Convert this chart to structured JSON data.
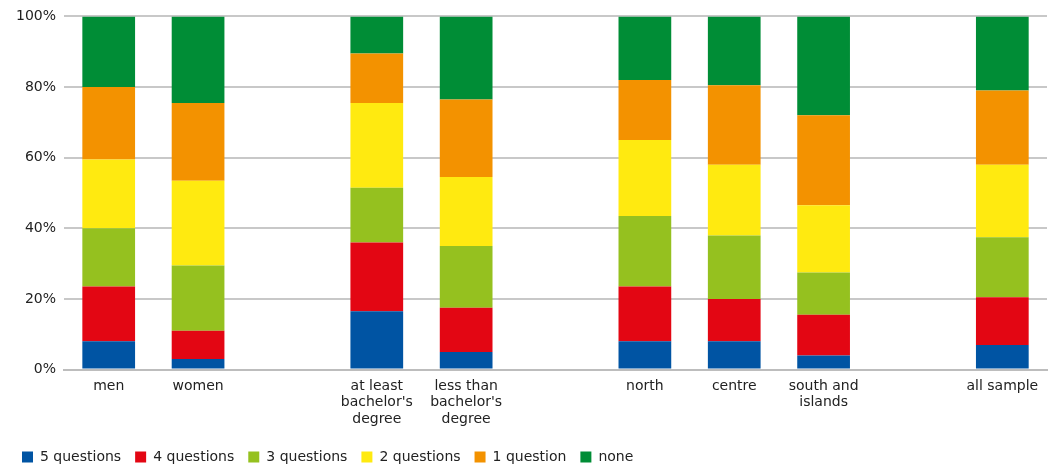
{
  "chart_data": {
    "type": "bar",
    "stacked": true,
    "categories": [
      "men",
      "women",
      null,
      "at least bachelor's degree",
      "less than bachelor's degree",
      null,
      "north",
      "centre",
      "south and islands",
      null,
      "all sample"
    ],
    "series": [
      {
        "name": "5 questions",
        "color": "#0054a3",
        "values": [
          8,
          3,
          null,
          16.5,
          5,
          null,
          8,
          8,
          4,
          null,
          7
        ]
      },
      {
        "name": "4 questions",
        "color": "#e30613",
        "values": [
          15.5,
          8,
          null,
          19.5,
          12.5,
          null,
          15.5,
          12,
          11.5,
          null,
          13.5
        ]
      },
      {
        "name": "3 questions",
        "color": "#95c11f",
        "values": [
          16.5,
          18.5,
          null,
          15.5,
          17.5,
          null,
          20,
          18,
          12,
          null,
          17
        ]
      },
      {
        "name": "2 questions",
        "color": "#ffea10",
        "values": [
          19.5,
          24,
          null,
          24,
          19.5,
          null,
          21.5,
          20,
          19,
          null,
          20.5
        ]
      },
      {
        "name": "1 question",
        "color": "#f39200",
        "values": [
          20.5,
          22,
          null,
          14,
          22,
          null,
          17,
          22.5,
          25.5,
          null,
          21
        ]
      },
      {
        "name": "none",
        "color": "#008d36",
        "values": [
          20,
          24.5,
          null,
          10.5,
          23.5,
          null,
          18,
          19.5,
          28,
          null,
          21
        ]
      }
    ],
    "ylim": [
      0,
      100
    ],
    "yticks": [
      {
        "value": 0,
        "label": "0%"
      },
      {
        "value": 20,
        "label": "20%"
      },
      {
        "value": 40,
        "label": "40%"
      },
      {
        "value": 60,
        "label": "60%"
      },
      {
        "value": 80,
        "label": "80%"
      },
      {
        "value": 100,
        "label": "100%"
      }
    ],
    "grid": "y",
    "legend": "bottom"
  }
}
